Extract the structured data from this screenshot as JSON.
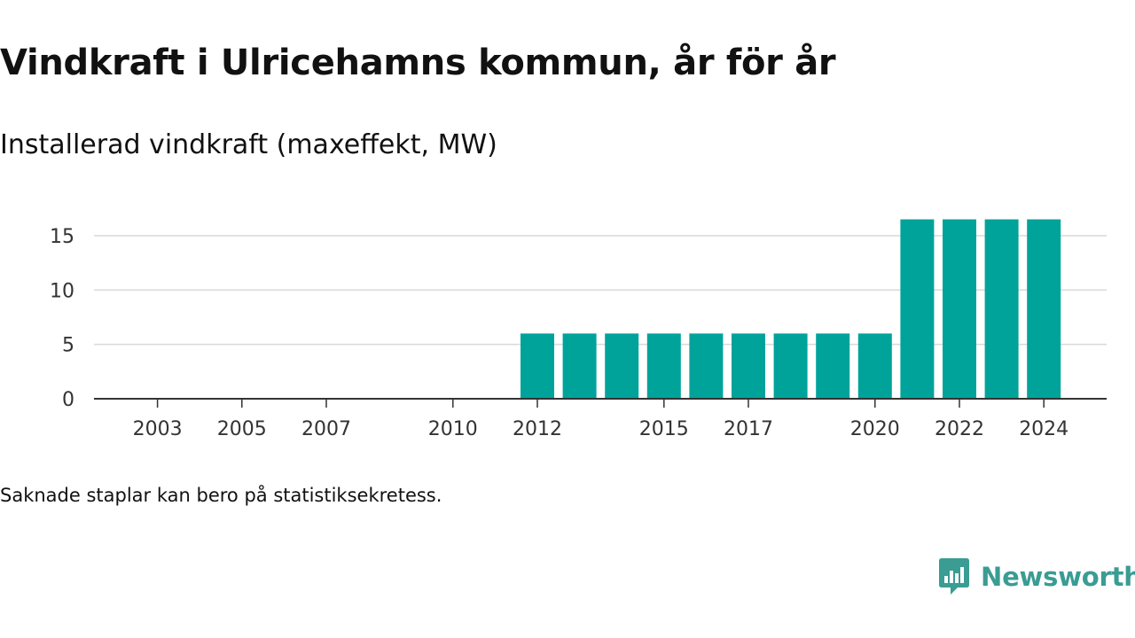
{
  "title": "Vindkraft i Ulricehamns kommun, år för år",
  "subtitle": "Installerad vindkraft (maxeffekt, MW)",
  "footnote": "Saknade staplar kan bero på statistiksekretess.",
  "brand": {
    "name": "Newsworthy",
    "icon": "newsworthy-logo-icon",
    "color": "#3a9c93"
  },
  "chart_data": {
    "type": "bar",
    "title": "Installerad vindkraft (maxeffekt, MW)",
    "xlabel": "",
    "ylabel": "",
    "categories": [
      2002,
      2003,
      2004,
      2005,
      2006,
      2007,
      2008,
      2009,
      2010,
      2011,
      2012,
      2013,
      2014,
      2015,
      2016,
      2017,
      2018,
      2019,
      2020,
      2021,
      2022,
      2023,
      2024
    ],
    "values": [
      0,
      0,
      0,
      0,
      0,
      0,
      0,
      0,
      0,
      0,
      6,
      6,
      6,
      6,
      6,
      6,
      6,
      6,
      6,
      16.5,
      16.5,
      16.5,
      16.5
    ],
    "x_tick_labels": [
      "2003",
      "2005",
      "2007",
      "2010",
      "2012",
      "2015",
      "2017",
      "2020",
      "2022",
      "2024"
    ],
    "y_ticks": [
      0,
      5,
      10,
      15
    ],
    "ylim": [
      0,
      17.5
    ],
    "grid": true,
    "bar_color": "#00a39a"
  }
}
